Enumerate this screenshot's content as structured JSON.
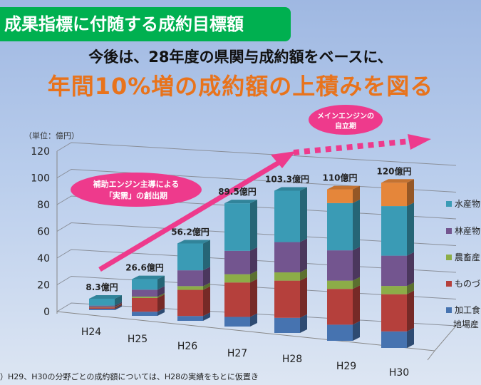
{
  "header": {
    "title": "成果指標に付随する成約目標額",
    "subtitle": "今後は、28年度の県関与成約額をベースに、",
    "headline": "年間10%増の成約額の上積みを図る"
  },
  "callouts": {
    "phase1": [
      "補助エンジン主導による",
      "「実需」の創出期"
    ],
    "phase2": [
      "メインエンジンの",
      "自立期"
    ]
  },
  "note": "）H29、H30の分野ごとの成約額については、H28の実績をもとに仮置き",
  "colors": {
    "arrow": "#ee3a8c",
    "title_bg": "#00b050",
    "headline": "#e8731c"
  },
  "chart_data": {
    "type": "bar",
    "stacked": true,
    "three_d": true,
    "unit_label": "（単位：億円）",
    "categories": [
      "H24",
      "H25",
      "H26",
      "H27",
      "H28",
      "H29",
      "H30"
    ],
    "totals": [
      8.3,
      26.6,
      56.2,
      89.5,
      103.3,
      110,
      120
    ],
    "total_labels": [
      "8.3億円",
      "26.6億円",
      "56.2億円",
      "89.5億円",
      "103.3億円",
      "110億円",
      "120億円"
    ],
    "series": [
      {
        "name": "加工食",
        "name_line2": "地場産",
        "color": "#4673b0",
        "values": [
          1,
          3,
          3.5,
          7,
          11,
          11.7,
          12
        ]
      },
      {
        "name": "ものづく",
        "color": "#b5403c",
        "values": [
          1,
          10,
          19,
          25,
          27,
          26,
          27
        ]
      },
      {
        "name": "農畜産",
        "color": "#8cad48",
        "values": [
          0.3,
          1,
          2.7,
          6,
          6,
          6,
          6
        ]
      },
      {
        "name": "林産物",
        "color": "#73558f",
        "values": [
          1,
          5,
          11.5,
          17,
          22,
          22,
          22
        ]
      },
      {
        "name": "水産物",
        "color": "#3a9bb5",
        "values": [
          5,
          7.6,
          19.5,
          34.5,
          37.3,
          34.3,
          36
        ]
      },
      {
        "name": "",
        "color": "#e5863a",
        "values": [
          0,
          0,
          0,
          0,
          0,
          10,
          17
        ]
      }
    ],
    "ylim": [
      0,
      120
    ],
    "yticks": [
      "0",
      "20",
      "40",
      "60",
      "80",
      "100",
      "120"
    ],
    "grid": true,
    "legend": "right"
  }
}
